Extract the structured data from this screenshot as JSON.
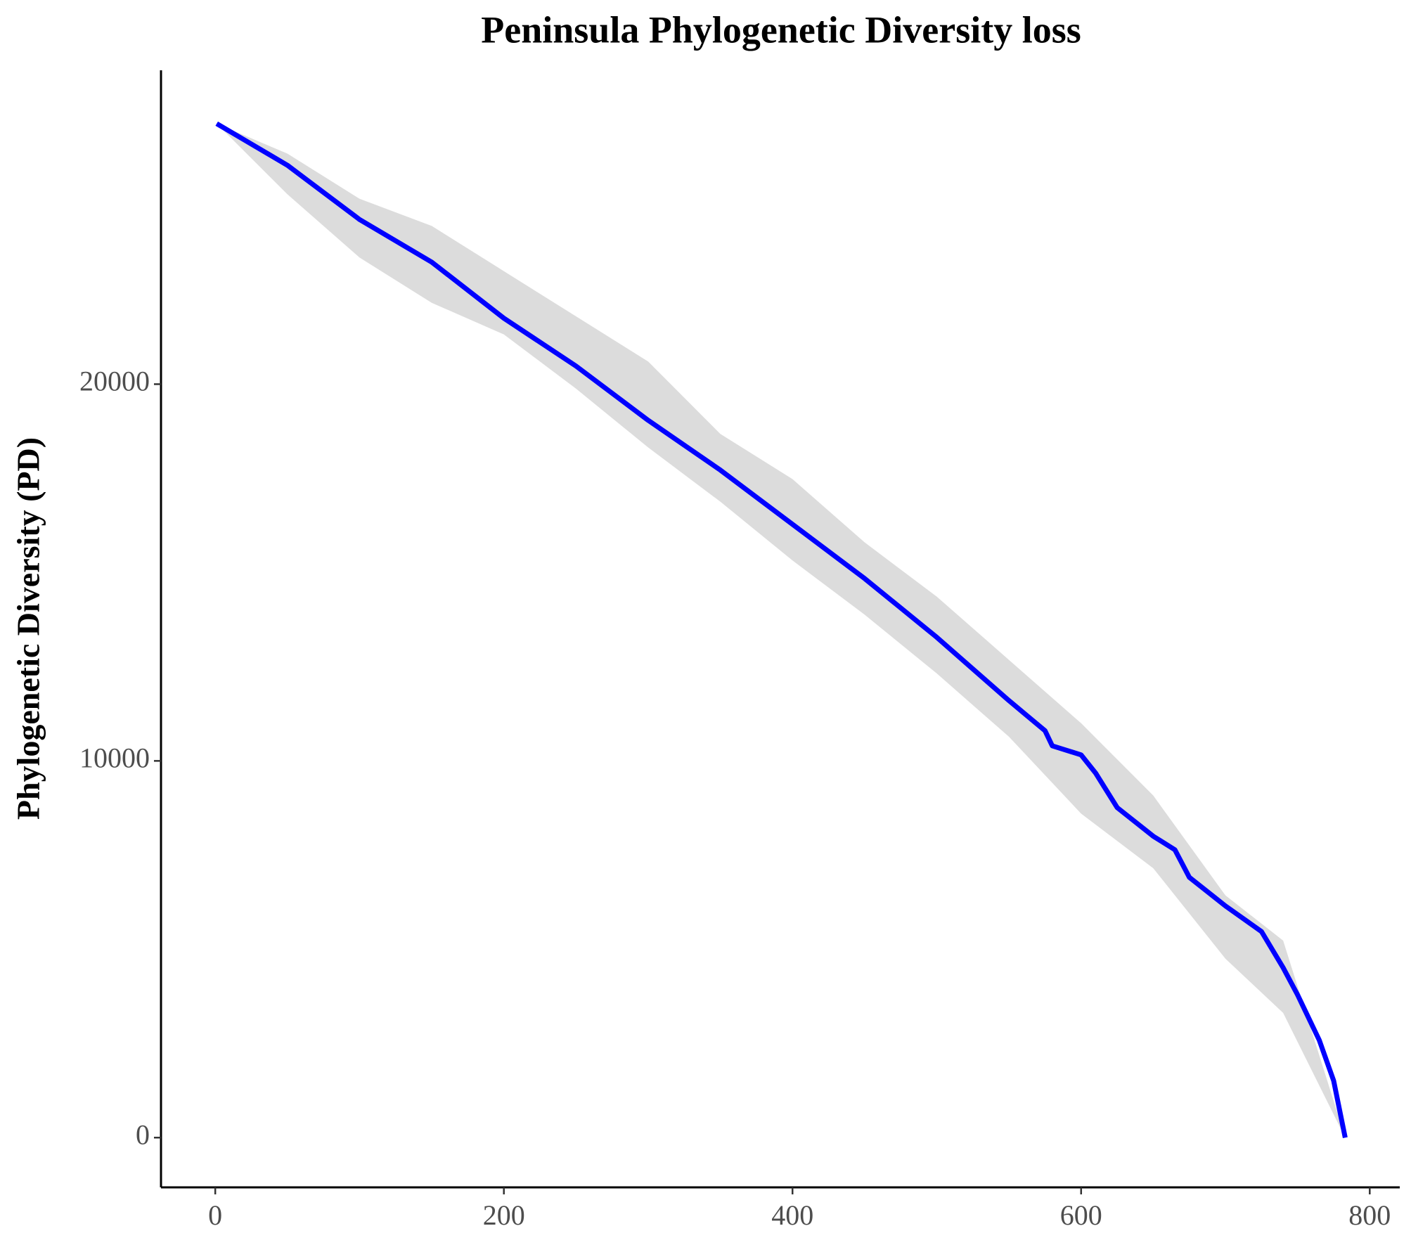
{
  "chart_data": {
    "type": "line",
    "title": "Peninsula Phylogenetic Diversity loss",
    "y_label": "Phylogenetic Diversity (PD)",
    "xlim": [
      -37.6,
      820.8
    ],
    "ylim": [
      -1320,
      28331
    ],
    "xticks": [
      0,
      200,
      400,
      600,
      800
    ],
    "yticks": [
      0,
      10000,
      20000
    ],
    "grid": false,
    "series": [
      {
        "color": "#0000ff",
        "x": [
          1,
          50,
          100,
          150,
          200,
          250,
          300,
          350,
          400,
          450,
          500,
          550,
          575,
          580,
          600,
          610,
          625,
          650,
          665,
          675,
          700,
          725,
          740,
          750,
          765,
          775,
          783
        ],
        "values": [
          26915,
          25810,
          24370,
          23240,
          21750,
          20480,
          19040,
          17720,
          16280,
          14840,
          13280,
          11600,
          10800,
          10400,
          10160,
          9680,
          8760,
          8000,
          7640,
          6910,
          6150,
          5470,
          4510,
          3790,
          2590,
          1510,
          0
        ]
      }
    ],
    "ribbon": {
      "color": "#dcdcdc",
      "x": [
        1,
        50,
        100,
        150,
        200,
        250,
        300,
        350,
        400,
        450,
        500,
        550,
        600,
        650,
        700,
        740,
        783
      ],
      "upper": [
        26915,
        26120,
        24920,
        24200,
        23000,
        21800,
        20600,
        18680,
        17480,
        15800,
        14360,
        12680,
        11000,
        9080,
        6430,
        5230,
        0
      ],
      "lower": [
        26915,
        25040,
        23360,
        22160,
        21320,
        19880,
        18320,
        16880,
        15320,
        13880,
        12320,
        10640,
        8600,
        7150,
        4750,
        3310,
        0
      ]
    }
  }
}
